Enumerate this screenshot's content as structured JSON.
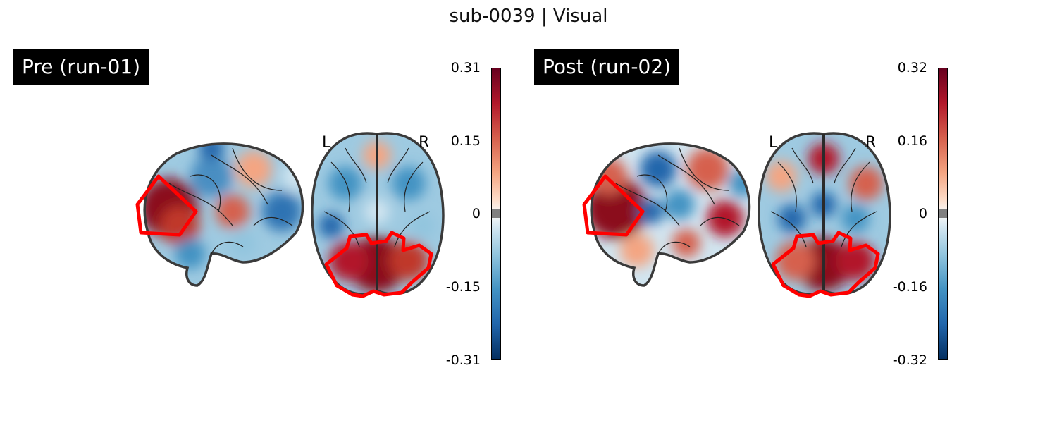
{
  "title": "sub-0039 | Visual",
  "panels": [
    {
      "label": "Pre (run-01)",
      "orientation": {
        "left": "L",
        "right": "R"
      },
      "colorbar": {
        "ticks": [
          "0.31",
          "0.15",
          "0",
          "-0.15",
          "-0.31"
        ]
      }
    },
    {
      "label": "Post (run-02)",
      "orientation": {
        "left": "L",
        "right": "R"
      },
      "colorbar": {
        "ticks": [
          "0.32",
          "0.16",
          "0",
          "-0.16",
          "-0.32"
        ]
      }
    }
  ],
  "colors": {
    "roi_outline": "#ff0000",
    "brain_outline": "#3a3a3a",
    "positive": "#b2182b",
    "negative": "#2166ac"
  }
}
